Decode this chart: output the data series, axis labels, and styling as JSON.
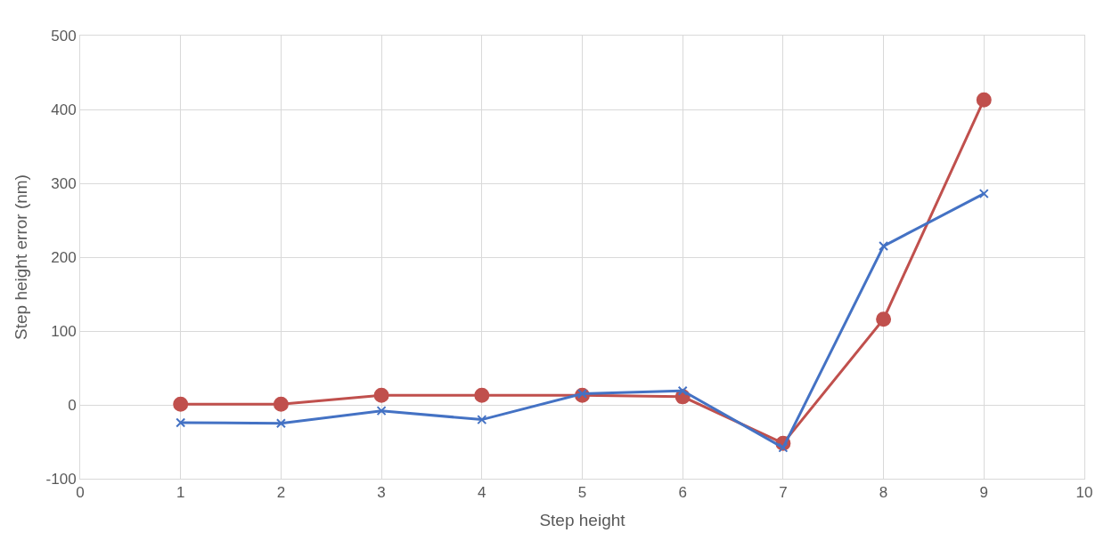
{
  "chart_data": {
    "type": "line",
    "xlabel": "Step height",
    "ylabel": "Step height error (nm)",
    "x": [
      1,
      2,
      3,
      4,
      5,
      6,
      7,
      8,
      9
    ],
    "series": [
      {
        "color": "#c0504d",
        "marker": "circle",
        "values": [
          1,
          1,
          13,
          13,
          13,
          11,
          -52,
          116,
          413
        ]
      },
      {
        "color": "#4472c4",
        "marker": "cross",
        "values": [
          -24,
          -25,
          -8,
          -20,
          15,
          19,
          -58,
          215,
          286
        ]
      }
    ],
    "xlim": [
      0,
      10
    ],
    "xticks": [
      0,
      1,
      2,
      3,
      4,
      5,
      6,
      7,
      8,
      9,
      10
    ],
    "ylim": [
      -100,
      500
    ],
    "yticks": [
      -100,
      0,
      100,
      200,
      300,
      400,
      500
    ],
    "grid": true,
    "legend": false
  }
}
